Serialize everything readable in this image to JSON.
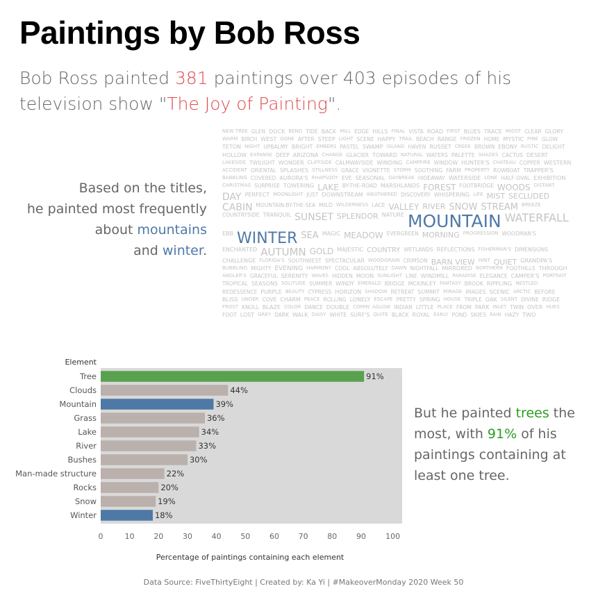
{
  "header": {
    "title": "Paintings by Bob Ross",
    "sub_a": "Bob Ross painted ",
    "sub_count": "381",
    "sub_b": " paintings over 403 episodes of his television show \"",
    "sub_show": "The Joy of Painting",
    "sub_c": "\"."
  },
  "left_note": {
    "line1": "Based on the titles,",
    "line2": "he painted most frequently",
    "line3a": "about ",
    "mountains": "mountains",
    "line4a": "and ",
    "winter": "winter",
    "line4b": "."
  },
  "right_note": {
    "a": "But he painted ",
    "trees": "trees",
    "b": " the most, with ",
    "pct": "91%",
    "c": " of his paintings containing at least one tree."
  },
  "word_cloud": [
    "NEW TREE",
    "GLEN",
    "DOCK",
    "BEND",
    "TIDE",
    "BACK",
    "MILL",
    "EDGE",
    "HILLS",
    "FINAL",
    "VISTA",
    "ROAD",
    "FIRST",
    "BLUES",
    "TRACE",
    "MIDST",
    "CLEAR",
    "GLORY",
    "WARM",
    "BIRCH",
    "WEST",
    "GONE",
    "AFTER",
    "STEEP",
    "LIGHT",
    "SCENE",
    "HAPPY",
    "TRAIL",
    "BEACH",
    "RANGE",
    "FROZEN",
    "HOME",
    "MYSTIC",
    "PINE",
    "GLOW",
    "TETON",
    "NIGHT",
    "UPBALMY",
    "BRIGHT",
    "EMBERS",
    "PASTEL",
    "SWAMP",
    "ISLAND",
    "HAVEN",
    "RUSSET",
    "CREEK",
    "BROWN",
    "EBONY",
    "RUSTIC",
    "DELIGHT",
    "HOLLOW",
    "EXPANSE",
    "DEEP",
    "ARIZONA",
    "CHANGE",
    "GLACIER",
    "TOWARD",
    "NATURAL",
    "WATERS",
    "PALETTE",
    "SHADES",
    "CACTUS",
    "DESERT",
    "LAKESIDE",
    "TWILIGHT",
    "WONDER",
    "CLIFFSIDE",
    "CALMWAYSIDE",
    "WINDING",
    "CAMPFIRE",
    "WINDOW",
    "HUNTER'S",
    "CHATEAU",
    "COPPER",
    "WESTERN",
    "ACCIDENT",
    "ORIENTAL",
    "SPLASHES",
    "STILLNESS",
    "GRACE",
    "VIGNETTE",
    "STORM",
    "SOOTHING",
    "FARM",
    "PROPERTY",
    "ROWBOAT",
    "TRAPPER'S",
    "BABBLING",
    "COVERED",
    "AURORA'S",
    "RHAPSODY",
    "EVE",
    "SEASONAL",
    "DAYBREAK",
    "HIDEAWAY",
    "WATERSIDE",
    "LONE",
    "HALF-OVAL",
    "EXHIBITION",
    "CHRISTMAS",
    "SURPRISE",
    "TOWERING",
    "LAKE",
    "BY-THE-ROAD",
    "MARSHLANDS",
    "FOREST",
    "FOOTBRIDGE",
    "WOODS",
    "DISTANT",
    "DAY",
    "PERFECT",
    "MOONLIGHT",
    "JUST",
    "DOWNSTREAM",
    "WEATHERED",
    "DISCOVERY",
    "WHISPERING",
    "LIFE",
    "MIST",
    "SECLUDED",
    "CABIN",
    "MOUNTAIN-BY-THE-SEA",
    "MILD",
    "WILDERNESS",
    "LACE",
    "VALLEY",
    "RIVER",
    "SNOW",
    "STREAM",
    "BREEZE",
    "COUNTRYSIDE",
    "TRANQUIL",
    "SUNSET",
    "SPLENDOR",
    "NATURE",
    "MOUNTAIN",
    "WATERFALL",
    "EBB",
    "WINTER",
    "SEA",
    "MAGIC",
    "MEADOW",
    "EVERGREEN",
    "MORNING",
    "PROGRESSION",
    "WOODMAN'S",
    "ENCHANTED",
    "AUTUMN",
    "GOLD",
    "MAJESTIC",
    "COUNTRY",
    "WETLANDS",
    "REFLECTIONS",
    "FISHERMAN'S",
    "DIMENSIONS",
    "CHALLENGE",
    "FLORIDA'S",
    "SOUTHWEST",
    "SPECTACULAR",
    "WOODGRAIN",
    "CRIMSON",
    "BARN VIEW",
    "HINT",
    "QUIET",
    "GRANDPA'S",
    "BUBBLING",
    "MIGHTY",
    "EVENING",
    "HARMONY",
    "COOL",
    "ABSOLUTELY",
    "DAWN",
    "NIGHTFALL",
    "MIRRORED",
    "NORTHERN",
    "FOOTHILLS",
    "THROUGH",
    "ANGLER'S",
    "GRACEFUL",
    "SERENITY",
    "WAVES",
    "HIDDEN",
    "MOON",
    "SUNLIGHT",
    "LINE",
    "WINDMILL",
    "PARADISE",
    "ELEGANCE",
    "CAMPER'S",
    "PORTRAIT",
    "TROPICAL",
    "SEASONS",
    "SOLITUDE",
    "SUMMER",
    "WINDY",
    "EMERALD",
    "BRIDGE",
    "MCKINLEY",
    "FANTASY",
    "BROOK",
    "RIPPLING",
    "NESTLED",
    "REDESSENCE",
    "PURPLE",
    "BEAUTY",
    "CYPRESS",
    "HORIZON",
    "SHADOW",
    "RETREAT",
    "SUMMIT",
    "MIRAGE",
    "IMAGES",
    "SCENIC",
    "ARCTIC",
    "BEFORE",
    "BLISS",
    "UNDER",
    "COVE",
    "CHARM",
    "PEACE",
    "ROLLING",
    "LONELY",
    "ESCAPE",
    "PRETTY",
    "SPRING",
    "HOUSE",
    "TRIPLE",
    "OAK",
    "SILENT",
    "DIVINE",
    "RIDGE",
    "FROST",
    "KNOLL",
    "BLAZE",
    "COLOR",
    "DANCE",
    "DOUBLE",
    "COMIN' AGLOW",
    "INDIAN",
    "LITTLE",
    "PLACE",
    "FROM",
    "PARK",
    "INLET",
    "TWIN",
    "OVER",
    "HUES",
    "FOOT",
    "LOST",
    "GREY",
    "DARK",
    "WALK",
    "DAISY",
    "WHITE",
    "SURF'S",
    "QUITE",
    "BLACK",
    "ROYAL",
    "EARLY",
    "POND",
    "SKIES",
    "RAIN",
    "HAZY",
    "TWO"
  ],
  "chart_data": {
    "type": "bar",
    "orientation": "horizontal",
    "legend_title": "Element",
    "categories": [
      "Tree",
      "Clouds",
      "Mountain",
      "Grass",
      "Lake",
      "River",
      "Bushes",
      "Man-made structure",
      "Rocks",
      "Snow",
      "Winter"
    ],
    "values": [
      91,
      44,
      39,
      36,
      34,
      33,
      30,
      22,
      20,
      19,
      18
    ],
    "value_labels": [
      "91%",
      "44%",
      "39%",
      "36%",
      "34%",
      "33%",
      "30%",
      "22%",
      "20%",
      "19%",
      "18%"
    ],
    "bar_colors": [
      "#59a14f",
      "#bab0ac",
      "#4e79a7",
      "#bab0ac",
      "#bab0ac",
      "#bab0ac",
      "#bab0ac",
      "#bab0ac",
      "#bab0ac",
      "#bab0ac",
      "#4e79a7"
    ],
    "xlabel": "Percentage of paintings containing each element",
    "xlim": [
      0,
      100
    ],
    "xticks": [
      0,
      10,
      20,
      30,
      40,
      50,
      60,
      70,
      80,
      90,
      100
    ],
    "background": "#d9d9d9"
  },
  "footer": "Data Source: FiveThirtyEight | Created by: Ka Yi | #MakeoverMonday 2020 Week 50"
}
